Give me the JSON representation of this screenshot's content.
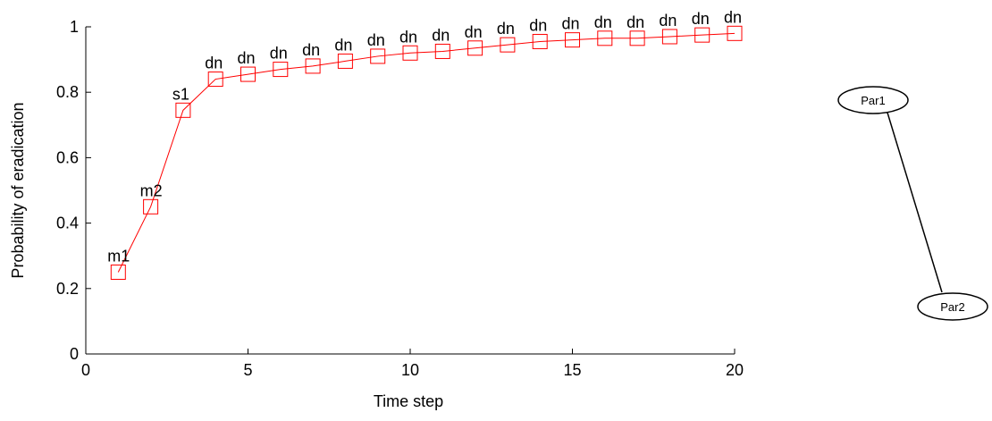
{
  "chart_data": {
    "type": "line",
    "x_label": "Time step",
    "y_label": "Probability of eradication",
    "x": [
      1,
      2,
      3,
      4,
      5,
      6,
      7,
      8,
      9,
      10,
      11,
      12,
      13,
      14,
      15,
      16,
      17,
      18,
      19,
      20
    ],
    "series": [
      {
        "color": "#ff0000",
        "values": [
          0.25,
          0.45,
          0.745,
          0.84,
          0.855,
          0.87,
          0.88,
          0.895,
          0.91,
          0.92,
          0.925,
          0.935,
          0.945,
          0.955,
          0.96,
          0.965,
          0.965,
          0.97,
          0.975,
          0.98
        ],
        "point_labels": [
          "m1",
          "m2",
          "s1",
          "dn",
          "dn",
          "dn",
          "dn",
          "dn",
          "dn",
          "dn",
          "dn",
          "dn",
          "dn",
          "dn",
          "dn",
          "dn",
          "dn",
          "dn",
          "dn",
          "dn"
        ]
      }
    ],
    "xlim": [
      0,
      20
    ],
    "xticks": [
      0,
      5,
      10,
      15,
      20
    ],
    "ylim": [
      0,
      1
    ],
    "yticks": [
      0,
      0.2,
      0.4,
      0.6,
      0.8,
      1
    ]
  },
  "diagram": {
    "nodes": [
      {
        "label": "Par1"
      },
      {
        "label": "Par2"
      }
    ]
  }
}
